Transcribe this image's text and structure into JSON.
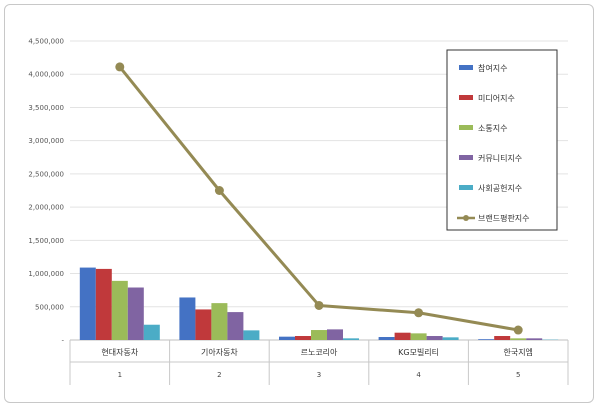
{
  "chart_data": {
    "type": "bar",
    "categories": [
      "현대자동차",
      "기아자동차",
      "르노코리아",
      "KG모빌리티",
      "한국지엠"
    ],
    "category_index": [
      "1",
      "2",
      "3",
      "4",
      "5"
    ],
    "ylim": [
      0,
      4500000
    ],
    "yticks": [
      {
        "value": 0,
        "label": "-"
      },
      {
        "value": 500000,
        "label": "500,000"
      },
      {
        "value": 1000000,
        "label": "1,000,000"
      },
      {
        "value": 1500000,
        "label": "1,500,000"
      },
      {
        "value": 2000000,
        "label": "2,000,000"
      },
      {
        "value": 2500000,
        "label": "2,500,000"
      },
      {
        "value": 3000000,
        "label": "3,000,000"
      },
      {
        "value": 3500000,
        "label": "3,500,000"
      },
      {
        "value": 4000000,
        "label": "4,000,000"
      },
      {
        "value": 4500000,
        "label": "4,500,000"
      }
    ],
    "legend_position": "right",
    "series": [
      {
        "name": "참여지수",
        "type": "bar",
        "color": "#4472C4",
        "values": [
          1090000,
          640000,
          50000,
          45000,
          12000
        ]
      },
      {
        "name": "미디어지수",
        "type": "bar",
        "color": "#C0393B",
        "values": [
          1070000,
          460000,
          60000,
          110000,
          60000
        ]
      },
      {
        "name": "소통지수",
        "type": "bar",
        "color": "#9BBB59",
        "values": [
          890000,
          555000,
          150000,
          100000,
          25000
        ]
      },
      {
        "name": "커뮤니티지수",
        "type": "bar",
        "color": "#8064A2",
        "values": [
          790000,
          420000,
          160000,
          60000,
          25000
        ]
      },
      {
        "name": "사회공헌지수",
        "type": "bar",
        "color": "#4BACC6",
        "values": [
          230000,
          145000,
          25000,
          40000,
          5000
        ]
      },
      {
        "name": "브랜드평판지수",
        "type": "line",
        "color": "#948A54",
        "values": [
          4110000,
          2250000,
          520000,
          410000,
          150000
        ]
      }
    ]
  }
}
